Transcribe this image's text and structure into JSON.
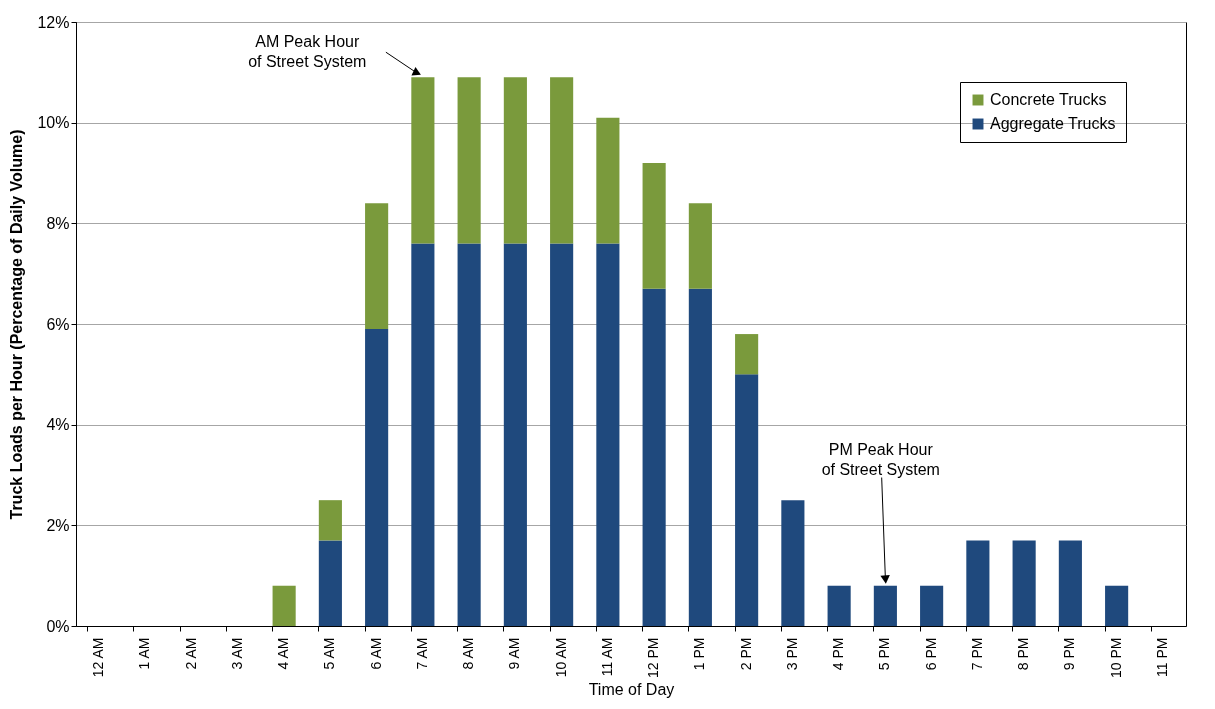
{
  "chart_data": {
    "type": "bar",
    "xlabel": "Time of Day",
    "ylabel": "Truck Loads per Hour (Percentage of Daily Volume)",
    "categories": [
      "12 AM",
      "1 AM",
      "2 AM",
      "3 AM",
      "4 AM",
      "5 AM",
      "6 AM",
      "7 AM",
      "8 AM",
      "9 AM",
      "10 AM",
      "11 AM",
      "12 PM",
      "1 PM",
      "2 PM",
      "3 PM",
      "4 PM",
      "5 PM",
      "6 PM",
      "7 PM",
      "8 PM",
      "9 PM",
      "10 PM",
      "11 PM"
    ],
    "series": [
      {
        "name": "Aggregate Trucks",
        "color": "#1f497d",
        "values": [
          0,
          0,
          0,
          0,
          0,
          1.7,
          5.9,
          7.6,
          7.6,
          7.6,
          7.6,
          7.6,
          6.7,
          6.7,
          5.0,
          2.5,
          0.8,
          0.8,
          0.8,
          1.7,
          1.7,
          1.7,
          0.8,
          0
        ]
      },
      {
        "name": "Concrete Trucks",
        "color": "#7a9a3c",
        "values": [
          0,
          0,
          0,
          0,
          0.8,
          0.8,
          2.5,
          3.3,
          3.3,
          3.3,
          3.3,
          2.5,
          2.5,
          1.7,
          0.8,
          0,
          0,
          0,
          0,
          0,
          0,
          0,
          0,
          0
        ]
      }
    ],
    "stacked": true,
    "ylim": [
      0,
      12
    ],
    "yticks": [
      {
        "value": 0,
        "label": "0%"
      },
      {
        "value": 2,
        "label": "2%"
      },
      {
        "value": 4,
        "label": "4%"
      },
      {
        "value": 6,
        "label": "6%"
      },
      {
        "value": 8,
        "label": "8%"
      },
      {
        "value": 10,
        "label": "10%"
      },
      {
        "value": 12,
        "label": "12%"
      }
    ],
    "grid": "y",
    "legend": "top right",
    "annotations": [
      {
        "text": "AM Peak Hour\nof Street System",
        "x": "7 AM",
        "y": 10.9
      },
      {
        "text": "PM Peak Hour\nof Street System",
        "x": "5 PM",
        "y": 0.8
      }
    ]
  }
}
